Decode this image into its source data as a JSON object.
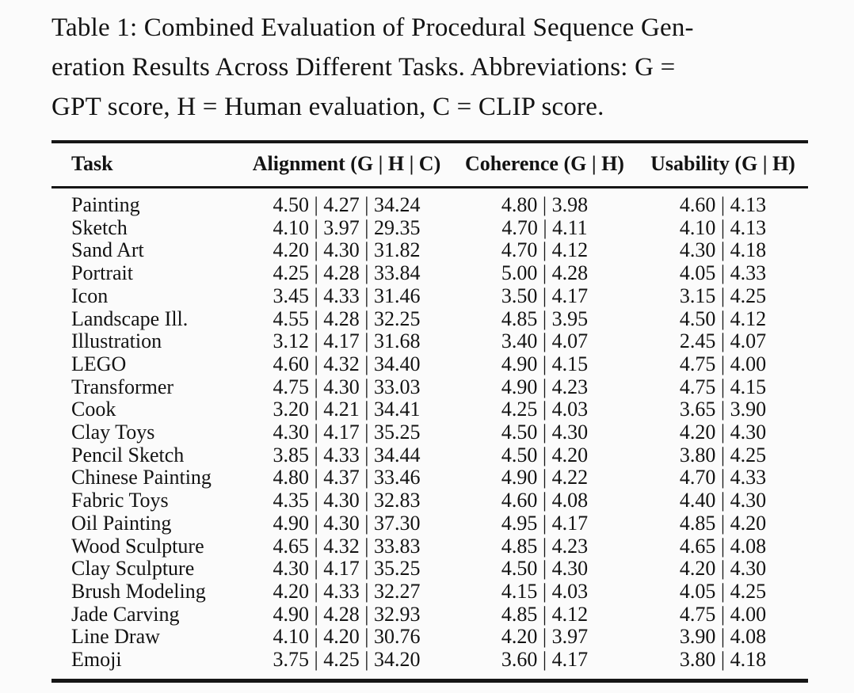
{
  "caption": {
    "lines": [
      "Table 1: Combined Evaluation of Procedural Sequence Gen-",
      "eration Results Across Different Tasks. Abbreviations: G =",
      "GPT score, H = Human evaluation, C = CLIP score."
    ]
  },
  "table": {
    "headers": {
      "task": "Task",
      "alignment": "Alignment (G | H | C)",
      "coherence": "Coherence (G | H)",
      "usability": "Usability (G | H)"
    },
    "rows": [
      {
        "task": "Painting",
        "alignment": "4.50 | 4.27 | 34.24",
        "coherence": "4.80 | 3.98",
        "usability": "4.60 | 4.13"
      },
      {
        "task": "Sketch",
        "alignment": "4.10 | 3.97 | 29.35",
        "coherence": "4.70 | 4.11",
        "usability": "4.10 | 4.13"
      },
      {
        "task": "Sand Art",
        "alignment": "4.20 | 4.30 | 31.82",
        "coherence": "4.70 | 4.12",
        "usability": "4.30 | 4.18"
      },
      {
        "task": "Portrait",
        "alignment": "4.25 | 4.28 | 33.84",
        "coherence": "5.00 | 4.28",
        "usability": "4.05 | 4.33"
      },
      {
        "task": "Icon",
        "alignment": "3.45 | 4.33 | 31.46",
        "coherence": "3.50 | 4.17",
        "usability": "3.15 | 4.25"
      },
      {
        "task": "Landscape Ill.",
        "alignment": "4.55 | 4.28 | 32.25",
        "coherence": "4.85 | 3.95",
        "usability": "4.50 | 4.12"
      },
      {
        "task": "Illustration",
        "alignment": "3.12 | 4.17 | 31.68",
        "coherence": "3.40 | 4.07",
        "usability": "2.45 | 4.07"
      },
      {
        "task": "LEGO",
        "alignment": "4.60 | 4.32 | 34.40",
        "coherence": "4.90 | 4.15",
        "usability": "4.75 | 4.00"
      },
      {
        "task": "Transformer",
        "alignment": "4.75 | 4.30 | 33.03",
        "coherence": "4.90 | 4.23",
        "usability": "4.75 | 4.15"
      },
      {
        "task": "Cook",
        "alignment": "3.20 | 4.21 | 34.41",
        "coherence": "4.25 | 4.03",
        "usability": "3.65 | 3.90"
      },
      {
        "task": "Clay Toys",
        "alignment": "4.30 | 4.17 | 35.25",
        "coherence": "4.50 | 4.30",
        "usability": "4.20 | 4.30"
      },
      {
        "task": "Pencil Sketch",
        "alignment": "3.85 | 4.33 | 34.44",
        "coherence": "4.50 | 4.20",
        "usability": "3.80 | 4.25"
      },
      {
        "task": "Chinese Painting",
        "alignment": "4.80 | 4.37 | 33.46",
        "coherence": "4.90 | 4.22",
        "usability": "4.70 | 4.33"
      },
      {
        "task": "Fabric Toys",
        "alignment": "4.35 | 4.30 | 32.83",
        "coherence": "4.60 | 4.08",
        "usability": "4.40 | 4.30"
      },
      {
        "task": "Oil Painting",
        "alignment": "4.90 | 4.30 | 37.30",
        "coherence": "4.95 | 4.17",
        "usability": "4.85 | 4.20"
      },
      {
        "task": "Wood Sculpture",
        "alignment": "4.65 | 4.32 | 33.83",
        "coherence": "4.85 | 4.23",
        "usability": "4.65 | 4.08"
      },
      {
        "task": "Clay Sculpture",
        "alignment": "4.30 | 4.17 | 35.25",
        "coherence": "4.50 | 4.30",
        "usability": "4.20 | 4.30"
      },
      {
        "task": "Brush Modeling",
        "alignment": "4.20 | 4.33 | 32.27",
        "coherence": "4.15 | 4.03",
        "usability": "4.05 | 4.25"
      },
      {
        "task": "Jade Carving",
        "alignment": "4.90 | 4.28 | 32.93",
        "coherence": "4.85 | 4.12",
        "usability": "4.75 | 4.00"
      },
      {
        "task": "Line Draw",
        "alignment": "4.10 | 4.20 | 30.76",
        "coherence": "4.20 | 3.97",
        "usability": "3.90 | 4.08"
      },
      {
        "task": "Emoji",
        "alignment": "3.75 | 4.25 | 34.20",
        "coherence": "3.60 | 4.17",
        "usability": "3.80 | 4.18"
      }
    ]
  }
}
